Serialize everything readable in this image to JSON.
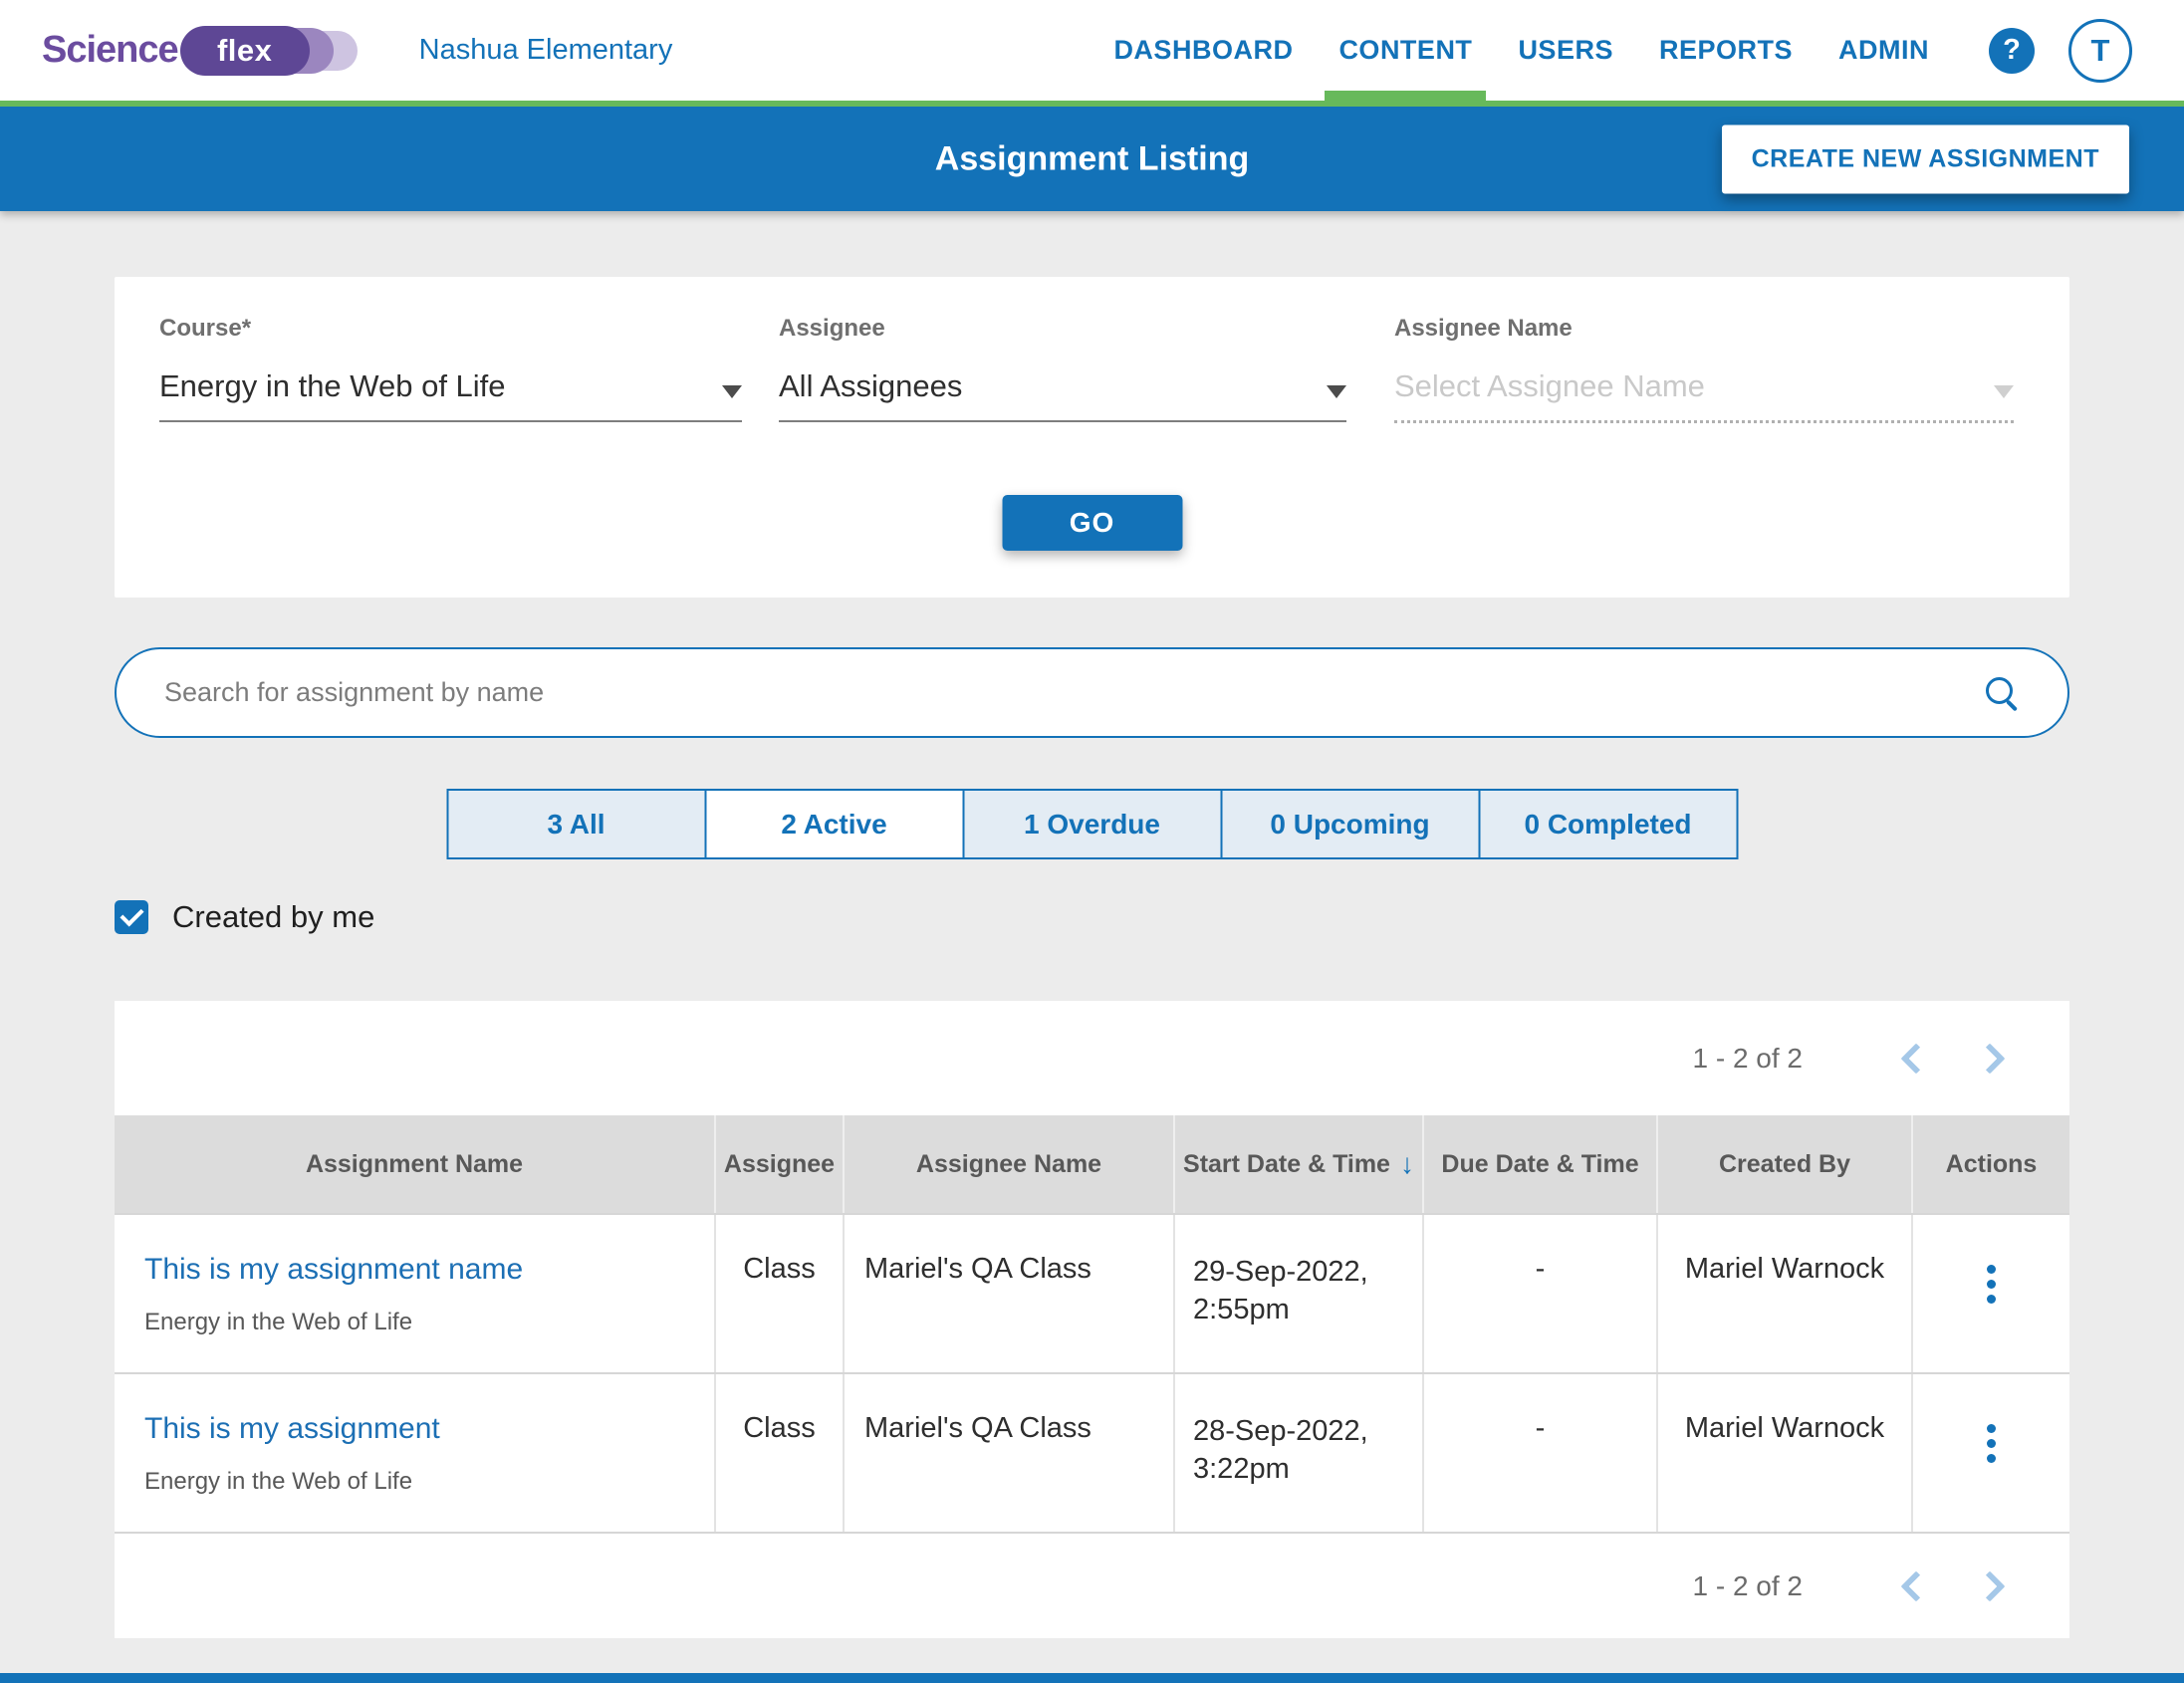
{
  "colors": {
    "primary_blue": "#1372b8",
    "accent_green": "#67b95b",
    "brand_purple": "#6b4c9f",
    "page_background": "#ececec",
    "table_header_background": "#dcdcdc",
    "link_blue": "#1c6fb4",
    "chevron_blue": "#a5c8e8"
  },
  "header": {
    "logo": {
      "text_primary": "Science",
      "text_secondary": "flex"
    },
    "school_name": "Nashua Elementary",
    "nav": [
      {
        "label": "DASHBOARD",
        "active": false
      },
      {
        "label": "CONTENT",
        "active": true
      },
      {
        "label": "USERS",
        "active": false
      },
      {
        "label": "REPORTS",
        "active": false
      },
      {
        "label": "ADMIN",
        "active": false
      }
    ],
    "help_glyph": "?",
    "avatar_initial": "T"
  },
  "title_bar": {
    "title": "Assignment Listing",
    "create_button_label": "CREATE NEW ASSIGNMENT"
  },
  "filters": {
    "course": {
      "label": "Course*",
      "value": "Energy in the Web of Life"
    },
    "assignee": {
      "label": "Assignee",
      "value": "All Assignees"
    },
    "assignee_name": {
      "label": "Assignee Name",
      "placeholder": "Select Assignee Name"
    },
    "go_button_label": "GO"
  },
  "search": {
    "placeholder": "Search for assignment by name"
  },
  "status_tabs": [
    {
      "label": "3 All",
      "selected": false
    },
    {
      "label": "2 Active",
      "selected": true
    },
    {
      "label": "1 Overdue",
      "selected": false
    },
    {
      "label": "0 Upcoming",
      "selected": false
    },
    {
      "label": "0 Completed",
      "selected": false
    }
  ],
  "created_by_me": {
    "label": "Created by me",
    "checked": true
  },
  "table": {
    "pagination": {
      "range": "1 - 2 of 2"
    },
    "columns": [
      "Assignment Name",
      "Assignee",
      "Assignee Name",
      "Start Date & Time",
      "Due Date & Time",
      "Created By",
      "Actions"
    ],
    "sort": {
      "column": "Start Date & Time",
      "direction": "desc",
      "glyph": "↓"
    },
    "rows": [
      {
        "name": "This is my assignment name",
        "course": "Energy in the Web of Life",
        "assignee": "Class",
        "assignee_name": "Mariel's QA Class",
        "start_date": "29-Sep-2022, 2:55pm",
        "due_date": "-",
        "created_by": "Mariel Warnock"
      },
      {
        "name": "This is my assignment",
        "course": "Energy in the Web of Life",
        "assignee": "Class",
        "assignee_name": "Mariel's QA Class",
        "start_date": "28-Sep-2022, 3:22pm",
        "due_date": "-",
        "created_by": "Mariel Warnock"
      }
    ]
  }
}
